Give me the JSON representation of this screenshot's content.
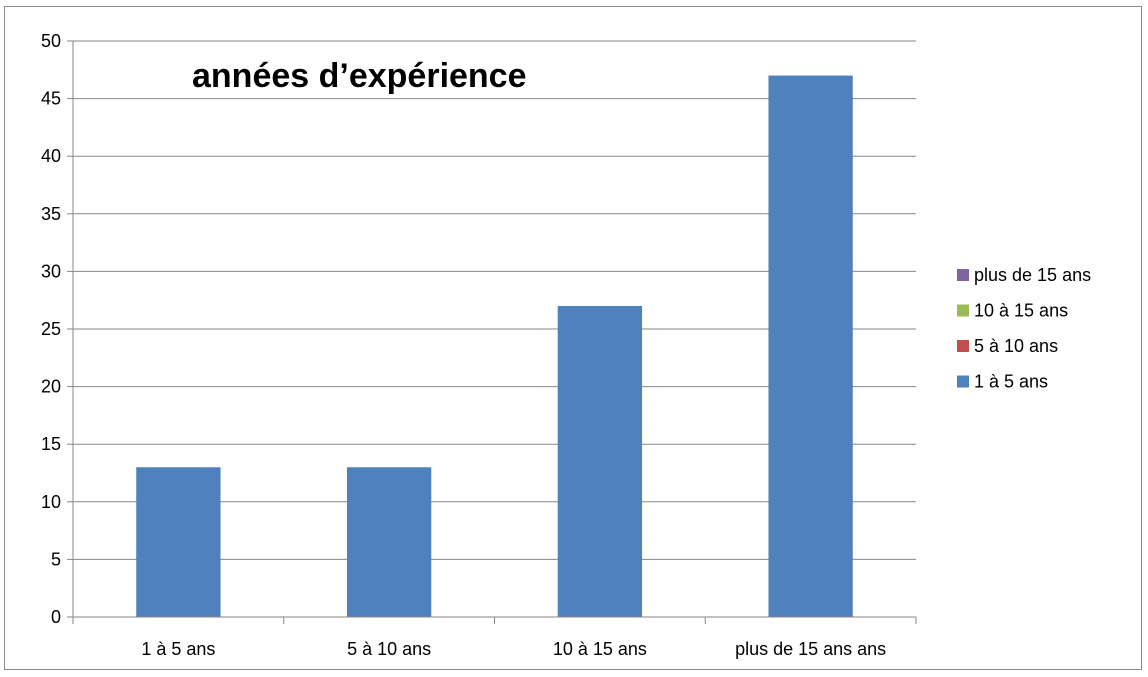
{
  "chart_data": {
    "type": "bar",
    "title": "années d’expérience",
    "categories": [
      "1 à 5 ans",
      "5 à 10 ans",
      "10 à 15 ans",
      "plus de 15 ans ans"
    ],
    "series": [
      {
        "name": "1 à 5 ans",
        "values": [
          13,
          13,
          27,
          47
        ]
      }
    ],
    "xlabel": "",
    "ylabel": "",
    "ylim": [
      0,
      50
    ],
    "yticks": [
      0,
      5,
      10,
      15,
      20,
      25,
      30,
      35,
      40,
      45,
      50
    ],
    "grid": true,
    "legend": {
      "placement": "right",
      "entries": [
        {
          "label": "plus de 15 ans",
          "color": "#8064A2"
        },
        {
          "label": "10 à 15 ans",
          "color": "#9BBB59"
        },
        {
          "label": "5 à 10 ans",
          "color": "#C0504D"
        },
        {
          "label": "1 à 5 ans",
          "color": "#4F81BD"
        }
      ]
    },
    "colors": {
      "bar": "#4F81BD",
      "gridline": "#868686",
      "axis": "#868686"
    }
  }
}
